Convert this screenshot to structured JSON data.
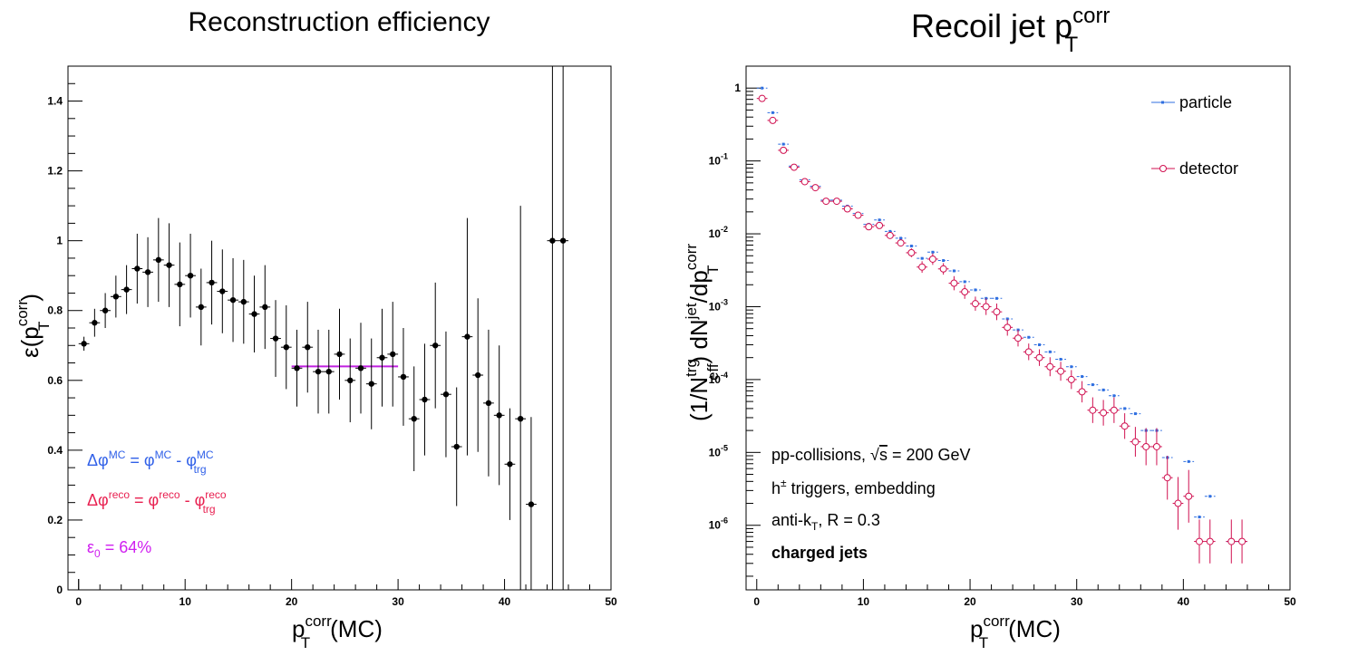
{
  "chart_data": [
    {
      "type": "scatter",
      "title": "Reconstruction efficiency",
      "xlabel": "p_T^corr(MC)",
      "ylabel": "ε(p_T^corr)",
      "xlim": [
        -1,
        50
      ],
      "ylim": [
        0,
        1.5
      ],
      "yscale": "linear",
      "x_ticks": [
        0,
        10,
        20,
        30,
        40,
        50
      ],
      "x_tick_labels": [
        "0",
        "10",
        "20",
        "30",
        "40",
        "50"
      ],
      "y_ticks": [
        0,
        0.2,
        0.4,
        0.6,
        0.8,
        1,
        1.2,
        1.4
      ],
      "y_tick_labels": [
        "0",
        "0.2",
        "0.4",
        "0.6",
        "0.8",
        "1",
        "1.2",
        "1.4"
      ],
      "series": [
        {
          "x": [
            0.5,
            1.5,
            2.5,
            3.5,
            4.5,
            5.5,
            6.5,
            7.5,
            8.5,
            9.5,
            10.5,
            11.5,
            12.5,
            13.5,
            14.5,
            15.5,
            16.5,
            17.5,
            18.5,
            19.5,
            20.5,
            21.5,
            22.5,
            23.5,
            24.5,
            25.5,
            26.5,
            27.5,
            28.5,
            29.5,
            30.5,
            31.5,
            32.5,
            33.5,
            34.5,
            35.5,
            36.5,
            37.5,
            38.5,
            39.5,
            40.5,
            41.5,
            42.5,
            44.5,
            45.5
          ],
          "y": [
            0.705,
            0.765,
            0.8,
            0.84,
            0.86,
            0.92,
            0.91,
            0.945,
            0.93,
            0.875,
            0.9,
            0.81,
            0.88,
            0.855,
            0.83,
            0.825,
            0.79,
            0.81,
            0.72,
            0.695,
            0.635,
            0.695,
            0.625,
            0.625,
            0.675,
            0.6,
            0.635,
            0.59,
            0.665,
            0.675,
            0.61,
            0.49,
            0.545,
            0.7,
            0.56,
            0.41,
            0.725,
            0.615,
            0.535,
            0.5,
            0.36,
            0.49,
            0.245,
            1.0,
            1.0
          ],
          "yerr": [
            0.02,
            0.04,
            0.05,
            0.06,
            0.07,
            0.1,
            0.1,
            0.12,
            0.12,
            0.12,
            0.12,
            0.11,
            0.12,
            0.12,
            0.12,
            0.12,
            0.11,
            0.12,
            0.11,
            0.12,
            0.11,
            0.13,
            0.12,
            0.12,
            0.13,
            0.12,
            0.13,
            0.13,
            0.14,
            0.15,
            0.14,
            0.15,
            0.16,
            0.18,
            0.18,
            0.17,
            0.34,
            0.22,
            0.21,
            0.2,
            0.16,
            0.61,
            0.25,
            1.0,
            1.0
          ],
          "color": "#000000"
        }
      ],
      "fit_line": {
        "x": [
          20,
          30
        ],
        "y": 0.64,
        "color": "#c020e0"
      },
      "annotations": [
        {
          "text_parts": [
            "Δφ",
            "MC",
            " = φ",
            "MC",
            " - φ",
            "MC",
            "trg"
          ],
          "color": "#3060e8"
        },
        {
          "text_parts": [
            "Δφ",
            "reco",
            " = φ",
            "reco",
            " - φ",
            "reco",
            "trg"
          ],
          "color": "#e82050"
        },
        {
          "text_parts": [
            "ε",
            "0",
            " = 64%"
          ],
          "color": "#d020f0"
        }
      ]
    },
    {
      "type": "scatter",
      "title": "Recoil jet p_T^corr",
      "xlabel": "p_T^corr(MC)",
      "ylabel": "(1/N_eff^trg) dN^jet/dp_T^corr",
      "xlim": [
        -1,
        50
      ],
      "ylim": [
        1.3e-07,
        2
      ],
      "yscale": "log",
      "x_ticks": [
        0,
        10,
        20,
        30,
        40,
        50
      ],
      "x_tick_labels": [
        "0",
        "10",
        "20",
        "30",
        "40",
        "50"
      ],
      "y_ticks": [
        1,
        0.1,
        0.01,
        0.001,
        0.0001,
        1e-05,
        1e-06
      ],
      "y_tick_labels": [
        "1",
        "10^-1",
        "10^-2",
        "10^-3",
        "10^-4",
        "10^-5",
        "10^-6"
      ],
      "legend": {
        "position": "top-right",
        "entries": [
          "particle",
          "detector"
        ]
      },
      "series": [
        {
          "name": "particle",
          "color": "#2f6fe0",
          "marker": "dot",
          "x": [
            0.5,
            1.5,
            2.5,
            3.5,
            4.5,
            5.5,
            6.5,
            7.5,
            8.5,
            9.5,
            10.5,
            11.5,
            12.5,
            13.5,
            14.5,
            15.5,
            16.5,
            17.5,
            18.5,
            19.5,
            20.5,
            21.5,
            22.5,
            23.5,
            24.5,
            25.5,
            26.5,
            27.5,
            28.5,
            29.5,
            30.5,
            31.5,
            32.5,
            33.5,
            34.5,
            35.5,
            36.5,
            37.5,
            38.5,
            40.5,
            41.5,
            42.5,
            44.5,
            45.5
          ],
          "y": [
            1.0,
            0.46,
            0.17,
            0.085,
            0.055,
            0.045,
            0.029,
            0.029,
            0.024,
            0.019,
            0.0135,
            0.0155,
            0.0108,
            0.0087,
            0.0068,
            0.0046,
            0.0056,
            0.0043,
            0.0031,
            0.0022,
            0.0017,
            0.0013,
            0.0013,
            0.00068,
            0.00048,
            0.00038,
            0.0003,
            0.00024,
            0.00019,
            0.00015,
            0.00011,
            8.5e-05,
            7.2e-05,
            6e-05,
            4e-05,
            3.4e-05,
            2e-05,
            2e-05,
            8.5e-06,
            7.5e-06,
            1.3e-06,
            2.5e-06,
            6e-07,
            6e-07
          ]
        },
        {
          "name": "detector",
          "color": "#d01050",
          "marker": "open-circle",
          "x": [
            0.5,
            1.5,
            2.5,
            3.5,
            4.5,
            5.5,
            6.5,
            7.5,
            8.5,
            9.5,
            10.5,
            11.5,
            12.5,
            13.5,
            14.5,
            15.5,
            16.5,
            17.5,
            18.5,
            19.5,
            20.5,
            21.5,
            22.5,
            23.5,
            24.5,
            25.5,
            26.5,
            27.5,
            28.5,
            29.5,
            30.5,
            31.5,
            32.5,
            33.5,
            34.5,
            35.5,
            36.5,
            37.5,
            38.5,
            39.5,
            40.5,
            41.5,
            42.5,
            44.5,
            45.5
          ],
          "y": [
            0.72,
            0.36,
            0.14,
            0.082,
            0.052,
            0.043,
            0.028,
            0.028,
            0.022,
            0.018,
            0.0125,
            0.013,
            0.0095,
            0.0075,
            0.0055,
            0.0035,
            0.0045,
            0.0033,
            0.0021,
            0.0016,
            0.0011,
            0.001,
            0.00085,
            0.00052,
            0.00037,
            0.00024,
            0.0002,
            0.00015,
            0.00013,
            0.0001,
            6.8e-05,
            3.8e-05,
            3.5e-05,
            3.8e-05,
            2.3e-05,
            1.4e-05,
            1.2e-05,
            1.2e-05,
            4.5e-06,
            2e-06,
            2.5e-06,
            6e-07,
            6e-07,
            6e-07,
            6e-07
          ],
          "yerr_up_factor": [
            1.05,
            1.05,
            1.05,
            1.05,
            1.05,
            1.05,
            1.05,
            1.05,
            1.05,
            1.05,
            1.08,
            1.08,
            1.1,
            1.1,
            1.15,
            1.2,
            1.2,
            1.2,
            1.25,
            1.25,
            1.25,
            1.3,
            1.3,
            1.3,
            1.3,
            1.3,
            1.3,
            1.35,
            1.35,
            1.35,
            1.4,
            1.5,
            1.5,
            1.5,
            1.5,
            1.6,
            1.8,
            1.8,
            2.0,
            2.3,
            2.3,
            2.0,
            2.0,
            2.0,
            2.0
          ]
        }
      ],
      "annotations": [
        {
          "text_parts": [
            "pp-collisions, ",
            "√s",
            " = 200 GeV"
          ],
          "bold": false
        },
        {
          "text_parts": [
            "h",
            "±",
            " triggers, embedding"
          ],
          "bold": false
        },
        {
          "text_parts": [
            "anti-k",
            "T",
            ", R = 0.3"
          ],
          "bold": false
        },
        {
          "text_parts": [
            "charged jets"
          ],
          "bold": true
        }
      ]
    }
  ]
}
